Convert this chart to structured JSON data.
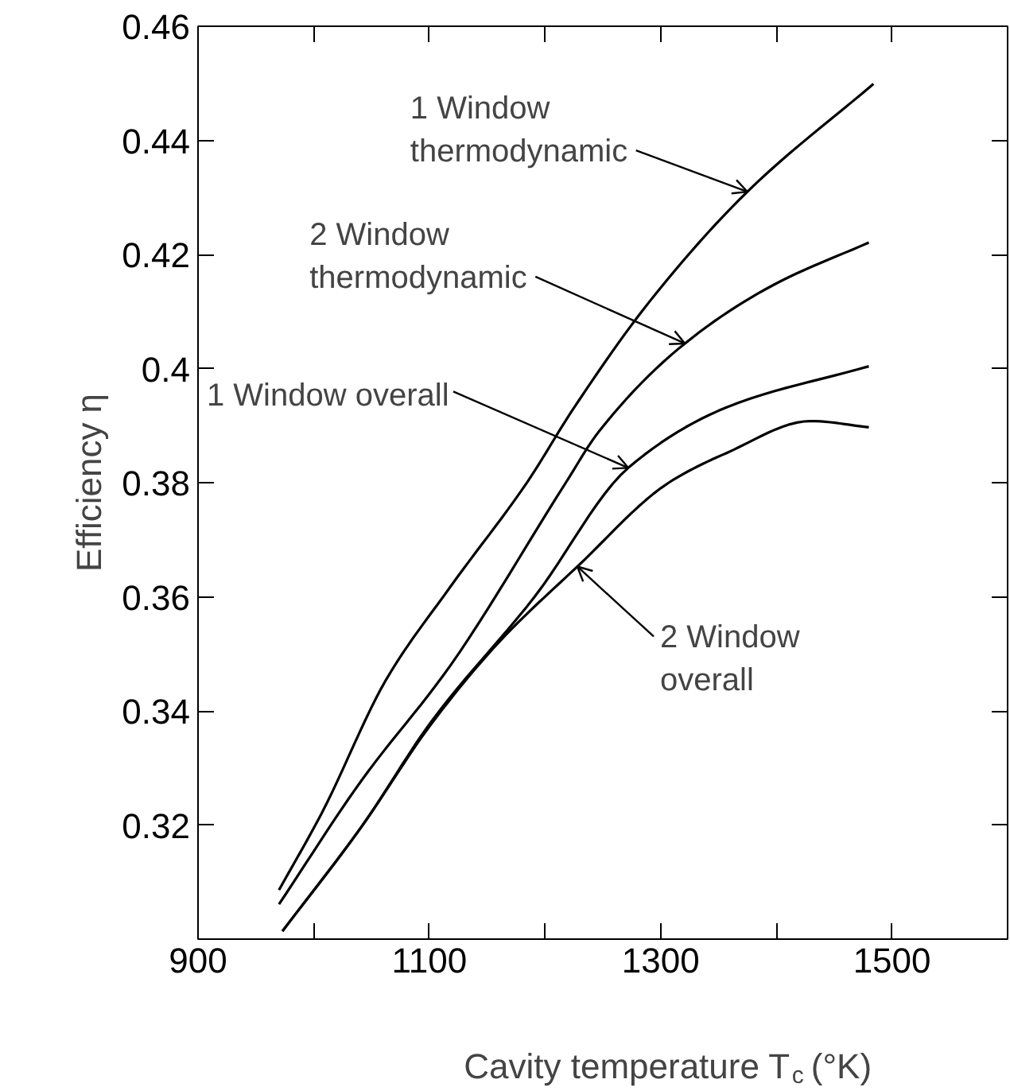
{
  "chart_data": {
    "type": "line",
    "xlabel": "Cavity temperature T$_{c}$ (°K)",
    "ylabel": "Efficiency η",
    "xlim": [
      900,
      1600
    ],
    "ylim": [
      0.3,
      0.46
    ],
    "xticks": [
      900,
      {
        "value": 1000,
        "label": null
      },
      1100,
      {
        "value": 1200,
        "label": null
      },
      1300,
      {
        "value": 1400,
        "label": null
      },
      1500
    ],
    "yticks": [
      0.32,
      0.34,
      0.36,
      0.38,
      0.4,
      0.42,
      0.44,
      0.46
    ],
    "grid": false,
    "marker": "none",
    "line_style": "solid",
    "series": [
      {
        "color": "#000000",
        "x": [
          970,
          1007,
          1063,
          1118,
          1185,
          1224,
          1291,
          1375,
          1484
        ],
        "values": [
          0.3086,
          0.3221,
          0.3456,
          0.3617,
          0.3802,
          0.3928,
          0.4119,
          0.431,
          0.4499
        ]
      },
      {
        "color": "#000000",
        "x": [
          970,
          1041,
          1118,
          1218,
          1246,
          1321,
          1397,
          1480
        ],
        "values": [
          0.3061,
          0.3277,
          0.3479,
          0.38,
          0.3888,
          0.4044,
          0.4146,
          0.4221
        ]
      },
      {
        "color": "#000000",
        "x": [
          973,
          1041,
          1102,
          1191,
          1272,
          1357,
          1480
        ],
        "values": [
          0.3014,
          0.3196,
          0.3382,
          0.36,
          0.3826,
          0.3932,
          0.4004
        ]
      },
      {
        "color": "#000000",
        "x": [
          973,
          1041,
          1102,
          1160,
          1228,
          1307,
          1357,
          1430,
          1480
        ],
        "values": [
          0.3014,
          0.3196,
          0.3378,
          0.352,
          0.3653,
          0.38,
          0.3852,
          0.3908,
          0.3897
        ]
      }
    ],
    "annotations": [
      {
        "text": "1 Window\nthermodynamic",
        "x": 1375,
        "y": 0.431
      },
      {
        "text": "2 Window\nthermodynamic",
        "x": 1321,
        "y": 0.4044
      },
      {
        "text": "1 Window  overall",
        "x": 1272,
        "y": 0.3826
      },
      {
        "text": "2 Window\noverall",
        "x": 1228,
        "y": 0.3653
      }
    ]
  }
}
